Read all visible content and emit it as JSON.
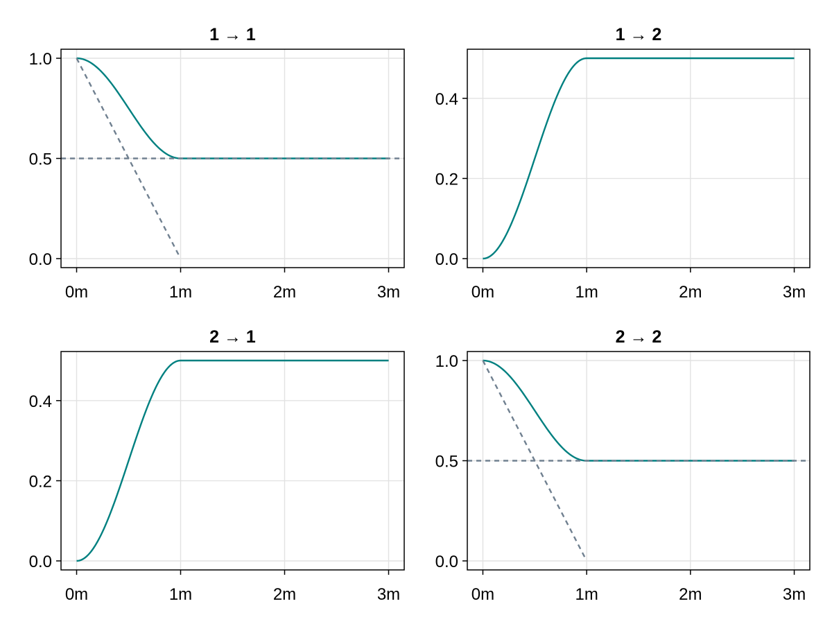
{
  "colors": {
    "main": "#008080",
    "reference": "#708090"
  },
  "chart_data": [
    {
      "type": "line",
      "title": "1 → 1",
      "xlim": [
        -0.15,
        3.15
      ],
      "ylim": [
        -0.045,
        1.045
      ],
      "x_ticks": [
        0,
        1,
        2,
        3
      ],
      "x_tick_labels": [
        "0m",
        "1m",
        "2m",
        "3m"
      ],
      "y_ticks": [
        0.0,
        0.5,
        1.0
      ],
      "y_tick_labels": [
        "0.0",
        "0.5",
        "1.0"
      ],
      "grid": true,
      "series": [
        {
          "style": "solid",
          "color": "#008080",
          "kind": "cosine_decay",
          "x": [
            0,
            0.25,
            0.5,
            0.75,
            1,
            2,
            3
          ],
          "y": [
            1.0,
            0.854,
            0.677,
            0.537,
            0.5,
            0.5,
            0.5
          ]
        },
        {
          "style": "dashed",
          "color": "#708090",
          "x": [
            0,
            0.98
          ],
          "y": [
            1.0,
            0.02
          ]
        },
        {
          "style": "dashed",
          "color": "#708090",
          "x": [
            -0.15,
            3.15
          ],
          "y": [
            0.5,
            0.5
          ]
        }
      ]
    },
    {
      "type": "line",
      "title": "1 → 2",
      "xlim": [
        -0.15,
        3.15
      ],
      "ylim": [
        -0.0225,
        0.5225
      ],
      "x_ticks": [
        0,
        1,
        2,
        3
      ],
      "x_tick_labels": [
        "0m",
        "1m",
        "2m",
        "3m"
      ],
      "y_ticks": [
        0.0,
        0.2,
        0.4
      ],
      "y_tick_labels": [
        "0.0",
        "0.2",
        "0.4"
      ],
      "grid": true,
      "series": [
        {
          "style": "solid",
          "color": "#008080",
          "kind": "cosine_rise",
          "x": [
            0,
            0.25,
            0.5,
            0.75,
            1,
            2,
            3
          ],
          "y": [
            0.0,
            0.146,
            0.323,
            0.463,
            0.5,
            0.5,
            0.5
          ]
        }
      ]
    },
    {
      "type": "line",
      "title": "2 → 1",
      "xlim": [
        -0.15,
        3.15
      ],
      "ylim": [
        -0.0225,
        0.5225
      ],
      "x_ticks": [
        0,
        1,
        2,
        3
      ],
      "x_tick_labels": [
        "0m",
        "1m",
        "2m",
        "3m"
      ],
      "y_ticks": [
        0.0,
        0.2,
        0.4
      ],
      "y_tick_labels": [
        "0.0",
        "0.2",
        "0.4"
      ],
      "grid": true,
      "series": [
        {
          "style": "solid",
          "color": "#008080",
          "kind": "cosine_rise",
          "x": [
            0,
            0.25,
            0.5,
            0.75,
            1,
            2,
            3
          ],
          "y": [
            0.0,
            0.146,
            0.323,
            0.463,
            0.5,
            0.5,
            0.5
          ]
        }
      ]
    },
    {
      "type": "line",
      "title": "2 → 2",
      "xlim": [
        -0.15,
        3.15
      ],
      "ylim": [
        -0.045,
        1.045
      ],
      "x_ticks": [
        0,
        1,
        2,
        3
      ],
      "x_tick_labels": [
        "0m",
        "1m",
        "2m",
        "3m"
      ],
      "y_ticks": [
        0.0,
        0.5,
        1.0
      ],
      "y_tick_labels": [
        "0.0",
        "0.5",
        "1.0"
      ],
      "grid": true,
      "series": [
        {
          "style": "solid",
          "color": "#008080",
          "kind": "cosine_decay",
          "x": [
            0,
            0.25,
            0.5,
            0.75,
            1,
            2,
            3
          ],
          "y": [
            1.0,
            0.854,
            0.677,
            0.537,
            0.5,
            0.5,
            0.5
          ]
        },
        {
          "style": "dashed",
          "color": "#708090",
          "x": [
            0,
            0.98
          ],
          "y": [
            1.0,
            0.02
          ]
        },
        {
          "style": "dashed",
          "color": "#708090",
          "x": [
            -0.15,
            3.15
          ],
          "y": [
            0.5,
            0.5
          ]
        }
      ]
    }
  ]
}
